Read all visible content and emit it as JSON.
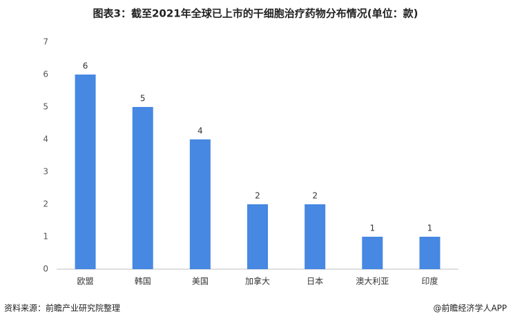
{
  "chart_data": {
    "type": "bar",
    "title": "图表3：截至2021年全球已上市的干细胞治疗药物分布情况(单位：款)",
    "categories": [
      "欧盟",
      "韩国",
      "美国",
      "加拿大",
      "日本",
      "澳大利亚",
      "印度"
    ],
    "values": [
      6,
      5,
      4,
      2,
      2,
      1,
      1
    ],
    "color": "#4688e2",
    "ylim": [
      0,
      7
    ],
    "yticks": [
      0,
      1,
      2,
      3,
      4,
      5,
      6,
      7
    ],
    "grid": false,
    "source": "资料来源：前瞻产业研究院整理",
    "credit": "@前瞻经济学人APP"
  }
}
